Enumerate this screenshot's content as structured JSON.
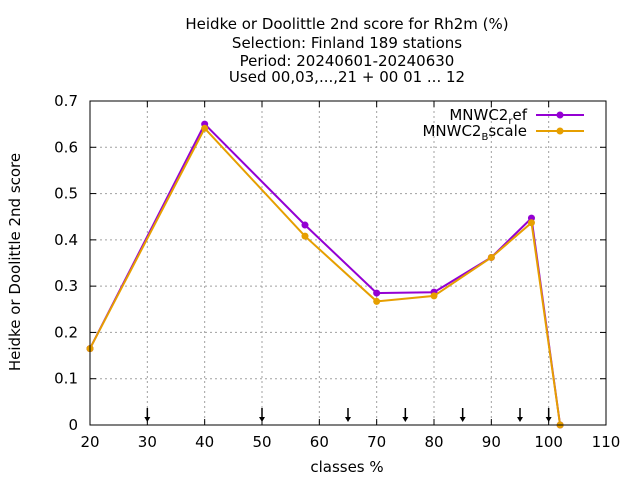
{
  "chart_data": {
    "type": "line",
    "title_lines": [
      "Heidke or Doolittle 2nd score  for Rh2m (%)",
      "Selection: Finland    189 stations",
      "Period: 20240601-20240630",
      "Used 00,03,...,21 + 00 01 ... 12"
    ],
    "xlabel": "classes %",
    "ylabel": "Heidke or Doolittle 2nd score",
    "xlim": [
      20,
      110
    ],
    "ylim": [
      0,
      0.7
    ],
    "x_ticks": [
      "20",
      "30",
      "40",
      "50",
      "60",
      "70",
      "80",
      "90",
      "100",
      "110"
    ],
    "y_ticks": [
      "0",
      "0.1",
      "0.2",
      "0.3",
      "0.4",
      "0.5",
      "0.6",
      "0.7"
    ],
    "grid": true,
    "legend_position": "top-right",
    "threshold_arrows_x": [
      30,
      50,
      65,
      75,
      85,
      95,
      100
    ],
    "series": [
      {
        "name_base": "MNWC2",
        "name_sub": "r",
        "name_rest": "ef",
        "color": "#9400d3",
        "x": [
          20,
          40,
          57.5,
          70,
          80,
          90,
          97,
          102
        ],
        "y": [
          0.165,
          0.65,
          0.432,
          0.285,
          0.287,
          0.362,
          0.447,
          0.0
        ]
      },
      {
        "name_base": "MNWC2",
        "name_sub": "B",
        "name_rest": "scale",
        "color": "#e69f00",
        "x": [
          20,
          40,
          57.5,
          70,
          80,
          90,
          97,
          102
        ],
        "y": [
          0.165,
          0.641,
          0.408,
          0.267,
          0.279,
          0.362,
          0.437,
          0.0
        ]
      }
    ]
  }
}
